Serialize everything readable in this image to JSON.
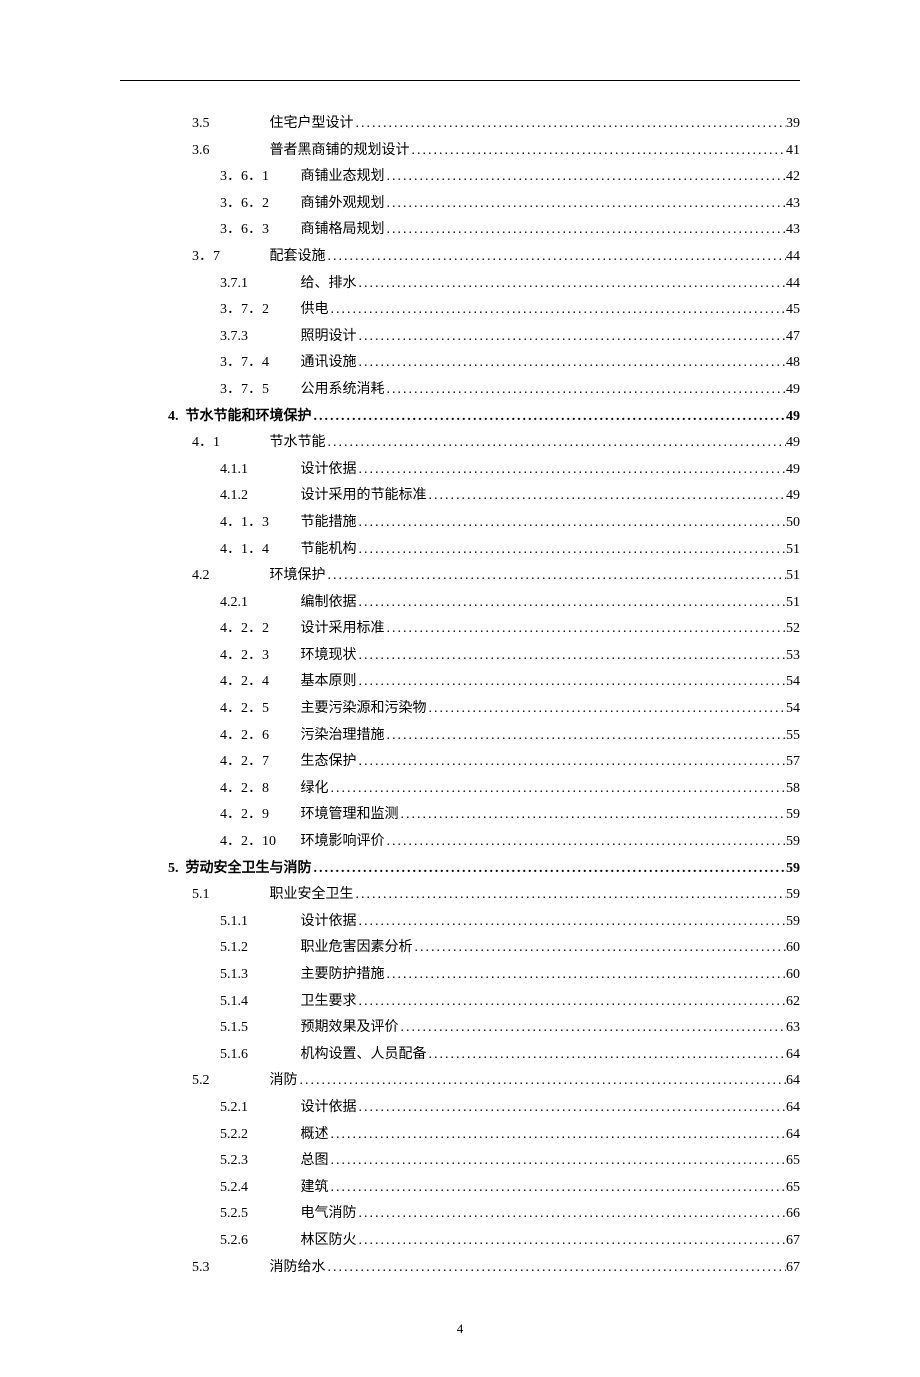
{
  "page_footer": "4",
  "toc": [
    {
      "level": 2,
      "num": "3.5",
      "title": "住宅户型设计",
      "page": "39"
    },
    {
      "level": 2,
      "num": "3.6",
      "title": "普者黑商铺的规划设计",
      "page": "41"
    },
    {
      "level": 3,
      "num": "3．6．1",
      "title": "商铺业态规划",
      "page": "42"
    },
    {
      "level": 3,
      "num": "3．6．2",
      "title": "商铺外观规划",
      "page": "43"
    },
    {
      "level": 3,
      "num": "3．6．3",
      "title": "商铺格局规划",
      "page": "43"
    },
    {
      "level": 2,
      "num": "3．7",
      "title": "配套设施",
      "page": "44"
    },
    {
      "level": 3,
      "num": "3.7.1",
      "title": "给、排水",
      "page": "44"
    },
    {
      "level": 3,
      "num": "3．7．2",
      "title": "供电",
      "page": "45"
    },
    {
      "level": 3,
      "num": "3.7.3",
      "title": "照明设计",
      "page": "47"
    },
    {
      "level": 3,
      "num": "3．7．4",
      "title": "通讯设施",
      "page": "48"
    },
    {
      "level": 3,
      "num": "3．7．5",
      "title": "公用系统消耗",
      "page": "49"
    },
    {
      "level": 1,
      "num": "4.",
      "title": "节水节能和环境保护",
      "page": "49"
    },
    {
      "level": 2,
      "num": "4．1",
      "title": "节水节能",
      "page": "49"
    },
    {
      "level": 3,
      "num": "4.1.1",
      "title": "设计依据",
      "page": "49"
    },
    {
      "level": 3,
      "num": "4.1.2",
      "title": "设计采用的节能标准",
      "page": "49"
    },
    {
      "level": 3,
      "num": "4．1．3",
      "title": "节能措施",
      "page": "50"
    },
    {
      "level": 3,
      "num": "4．1．4",
      "title": "节能机构",
      "page": "51"
    },
    {
      "level": 2,
      "num": "4.2",
      "title": "环境保护",
      "page": "51"
    },
    {
      "level": 3,
      "num": "4.2.1",
      "title": "编制依据",
      "page": "51"
    },
    {
      "level": 3,
      "num": "4．2．2",
      "title": "设计采用标准",
      "page": "52"
    },
    {
      "level": 3,
      "num": "4．2．3",
      "title": "环境现状",
      "page": "53"
    },
    {
      "level": 3,
      "num": "4．2．4",
      "title": "基本原则",
      "page": "54"
    },
    {
      "level": 3,
      "num": "4．2．5",
      "title": "主要污染源和污染物",
      "page": "54"
    },
    {
      "level": 3,
      "num": "4．2．6",
      "title": "污染治理措施",
      "page": "55"
    },
    {
      "level": 3,
      "num": "4．2．7",
      "title": "生态保护",
      "page": "57"
    },
    {
      "level": 3,
      "num": "4．2．8",
      "title": "绿化",
      "page": "58"
    },
    {
      "level": 3,
      "num": "4．2．9",
      "title": "环境管理和监测",
      "page": "59"
    },
    {
      "level": 3,
      "num": "4．2．10",
      "title": "环境影响评价",
      "page": "59"
    },
    {
      "level": 1,
      "num": "5.",
      "title": "劳动安全卫生与消防",
      "page": "59"
    },
    {
      "level": 2,
      "num": "5.1",
      "title": "职业安全卫生",
      "page": "59"
    },
    {
      "level": 3,
      "num": "5.1.1",
      "title": "设计依据",
      "page": "59"
    },
    {
      "level": 3,
      "num": "5.1.2",
      "title": "职业危害因素分析",
      "page": "60"
    },
    {
      "level": 3,
      "num": "5.1.3",
      "title": "主要防护措施",
      "page": "60"
    },
    {
      "level": 3,
      "num": "5.1.4",
      "title": "卫生要求",
      "page": "62"
    },
    {
      "level": 3,
      "num": "5.1.5",
      "title": "预期效果及评价",
      "page": "63"
    },
    {
      "level": 3,
      "num": "5.1.6",
      "title": "机构设置、人员配备",
      "page": "64"
    },
    {
      "level": 2,
      "num": "5.2",
      "title": "消防",
      "page": "64"
    },
    {
      "level": 3,
      "num": "5.2.1",
      "title": "设计依据",
      "page": "64"
    },
    {
      "level": 3,
      "num": "5.2.2",
      "title": "概述",
      "page": "64"
    },
    {
      "level": 3,
      "num": "5.2.3",
      "title": "总图",
      "page": "65"
    },
    {
      "level": 3,
      "num": "5.2.4",
      "title": "建筑",
      "page": "65"
    },
    {
      "level": 3,
      "num": "5.2.5",
      "title": "电气消防",
      "page": "66"
    },
    {
      "level": 3,
      "num": "5.2.6",
      "title": "林区防火",
      "page": "67"
    },
    {
      "level": 2,
      "num": "5.3",
      "title": "消防给水",
      "page": "67"
    }
  ]
}
